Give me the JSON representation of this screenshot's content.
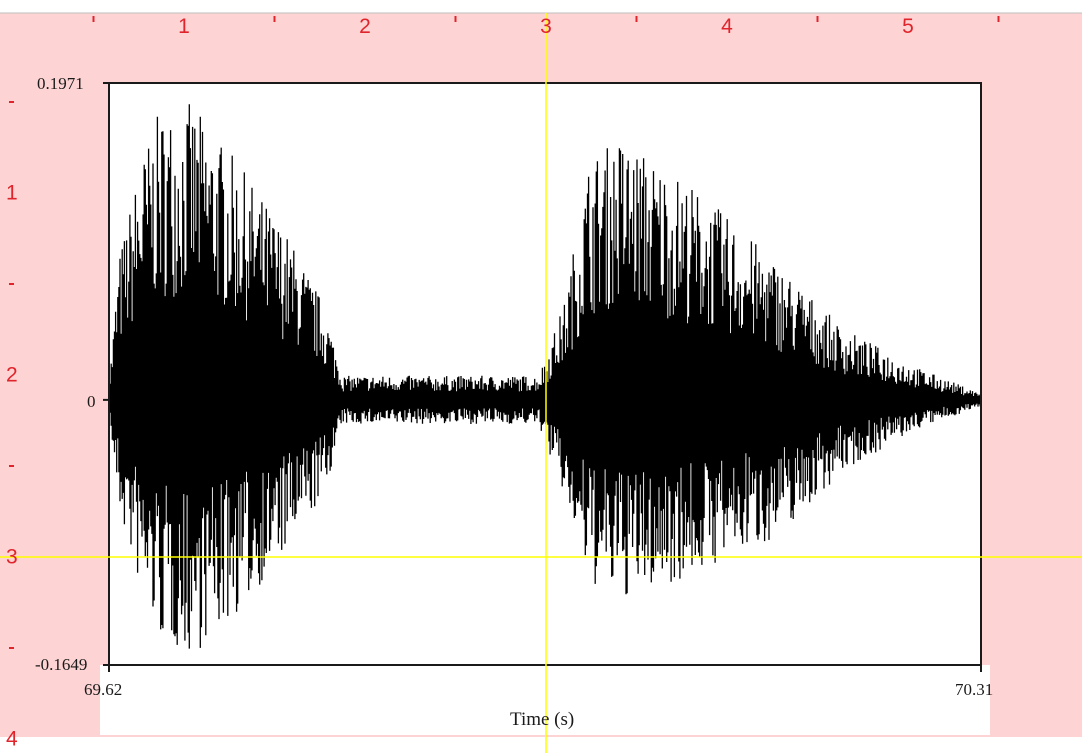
{
  "chart_data": {
    "type": "line",
    "title": "",
    "xlabel": "Time (s)",
    "ylabel": "",
    "xlim": [
      69.62,
      70.31
    ],
    "ylim": [
      -0.1649,
      0.1971
    ],
    "x_tick_labels": [
      "69.62",
      "70.31"
    ],
    "y_tick_labels": [
      "0.1971",
      "0",
      "-0.1649"
    ],
    "grid": false,
    "legend": "none",
    "series": [
      {
        "description_of_shape": "speech waveform with two bursts",
        "envelope": [
          {
            "x": 69.62,
            "upper": 0.01,
            "lower": -0.01
          },
          {
            "x": 69.628,
            "upper": 0.09,
            "lower": -0.07
          },
          {
            "x": 69.645,
            "upper": 0.15,
            "lower": -0.12
          },
          {
            "x": 69.66,
            "upper": 0.18,
            "lower": -0.15
          },
          {
            "x": 69.685,
            "upper": 0.185,
            "lower": -0.16
          },
          {
            "x": 69.72,
            "upper": 0.15,
            "lower": -0.135
          },
          {
            "x": 69.76,
            "upper": 0.105,
            "lower": -0.095
          },
          {
            "x": 69.79,
            "upper": 0.06,
            "lower": -0.06
          },
          {
            "x": 69.805,
            "upper": 0.015,
            "lower": -0.015
          },
          {
            "x": 69.96,
            "upper": 0.015,
            "lower": -0.015
          },
          {
            "x": 69.98,
            "upper": 0.06,
            "lower": -0.06
          },
          {
            "x": 70.0,
            "upper": 0.15,
            "lower": -0.115
          },
          {
            "x": 70.025,
            "upper": 0.165,
            "lower": -0.125
          },
          {
            "x": 70.08,
            "upper": 0.135,
            "lower": -0.11
          },
          {
            "x": 70.15,
            "upper": 0.085,
            "lower": -0.085
          },
          {
            "x": 70.2,
            "upper": 0.045,
            "lower": -0.045
          },
          {
            "x": 70.26,
            "upper": 0.02,
            "lower": -0.018
          },
          {
            "x": 70.31,
            "upper": 0.004,
            "lower": -0.004
          }
        ]
      }
    ]
  },
  "overlay": {
    "ruler_x_labels": [
      "1",
      "2",
      "3",
      "4",
      "5"
    ],
    "ruler_x_values": [
      1,
      2,
      3,
      4,
      5
    ],
    "ruler_y_labels": [
      "1",
      "2",
      "3",
      "4"
    ],
    "ruler_y_values": [
      1,
      2,
      3,
      4
    ],
    "ruler_x_minor_values": [
      0.5,
      1.5,
      2.5,
      3.5,
      4.5,
      5.5
    ],
    "ruler_y_minor_values": [
      0.5,
      1.5,
      2.5,
      3.5
    ],
    "crosshair_ruler": {
      "x": 3,
      "y": 3
    },
    "colors": {
      "background": "#fdd3d3",
      "ruler_text": "#e0242c",
      "crosshair": "#ffff00",
      "waveform": "#000000",
      "frame": "#1a1a1a"
    }
  }
}
